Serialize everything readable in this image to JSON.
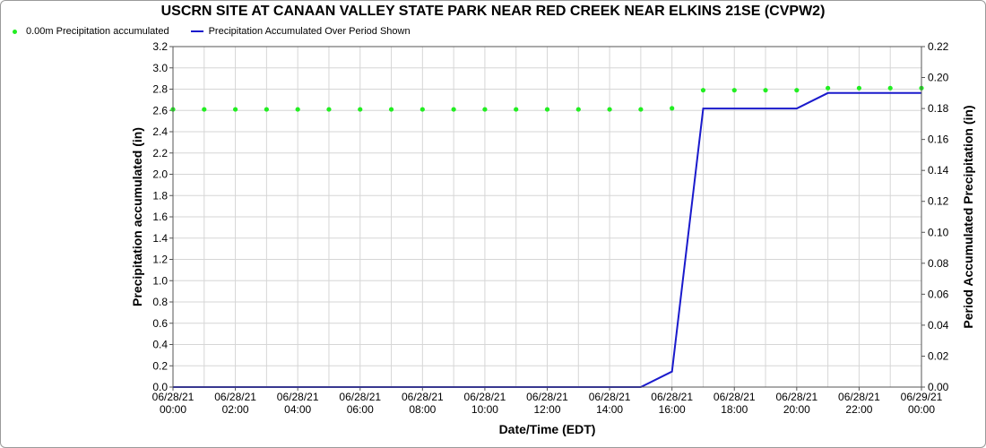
{
  "chart_data": {
    "type": "line",
    "title": "USCRN SITE AT CANAAN VALLEY STATE PARK NEAR RED CREEK NEAR ELKINS 21SE (CVPW2)",
    "xlabel": "Date/Time (EDT)",
    "ylabel": "Precipitation accumulated (in)",
    "y2label": "Period Accumulated Precipitation (in)",
    "xlim": [
      "06/28/21 00:00",
      "06/29/21 00:00"
    ],
    "ylim": [
      0,
      3.2
    ],
    "y2lim": [
      0,
      0.22
    ],
    "grid": true,
    "legend_position": "top-left",
    "x_ticks": [
      {
        "date": "06/28/21",
        "time": "00:00"
      },
      {
        "date": "06/28/21",
        "time": "02:00"
      },
      {
        "date": "06/28/21",
        "time": "04:00"
      },
      {
        "date": "06/28/21",
        "time": "06:00"
      },
      {
        "date": "06/28/21",
        "time": "08:00"
      },
      {
        "date": "06/28/21",
        "time": "10:00"
      },
      {
        "date": "06/28/21",
        "time": "12:00"
      },
      {
        "date": "06/28/21",
        "time": "14:00"
      },
      {
        "date": "06/28/21",
        "time": "16:00"
      },
      {
        "date": "06/28/21",
        "time": "18:00"
      },
      {
        "date": "06/28/21",
        "time": "20:00"
      },
      {
        "date": "06/28/21",
        "time": "22:00"
      },
      {
        "date": "06/29/21",
        "time": "00:00"
      }
    ],
    "y_ticks": [
      "0.0",
      "0.2",
      "0.4",
      "0.6",
      "0.8",
      "1.0",
      "1.2",
      "1.4",
      "1.6",
      "1.8",
      "2.0",
      "2.2",
      "2.4",
      "2.6",
      "2.8",
      "3.0",
      "3.2"
    ],
    "y2_ticks": [
      "0.00",
      "0.02",
      "0.04",
      "0.06",
      "0.08",
      "0.10",
      "0.12",
      "0.14",
      "0.16",
      "0.18",
      "0.20",
      "0.22"
    ],
    "series": [
      {
        "name": "0.00m Precipitation accumulated",
        "kind": "scatter",
        "axis": "left",
        "color": "#22ee22",
        "x": [
          "06/28/21 00:00",
          "06/28/21 01:00",
          "06/28/21 02:00",
          "06/28/21 03:00",
          "06/28/21 04:00",
          "06/28/21 05:00",
          "06/28/21 06:00",
          "06/28/21 07:00",
          "06/28/21 08:00",
          "06/28/21 09:00",
          "06/28/21 10:00",
          "06/28/21 11:00",
          "06/28/21 12:00",
          "06/28/21 13:00",
          "06/28/21 14:00",
          "06/28/21 15:00",
          "06/28/21 16:00",
          "06/28/21 17:00",
          "06/28/21 18:00",
          "06/28/21 19:00",
          "06/28/21 20:00",
          "06/28/21 21:00",
          "06/28/21 22:00",
          "06/28/21 23:00",
          "06/29/21 00:00"
        ],
        "y": [
          2.61,
          2.61,
          2.61,
          2.61,
          2.61,
          2.61,
          2.61,
          2.61,
          2.61,
          2.61,
          2.61,
          2.61,
          2.61,
          2.61,
          2.61,
          2.61,
          2.62,
          2.79,
          2.79,
          2.79,
          2.79,
          2.81,
          2.81,
          2.81,
          2.81
        ]
      },
      {
        "name": "Precipitation Accumulated Over Period Shown",
        "kind": "line",
        "axis": "right",
        "color": "#1a1acc",
        "x": [
          "06/28/21 00:00",
          "06/28/21 15:00",
          "06/28/21 16:00",
          "06/28/21 17:00",
          "06/28/21 20:00",
          "06/28/21 21:00",
          "06/29/21 00:00"
        ],
        "y": [
          0.0,
          0.0,
          0.01,
          0.18,
          0.18,
          0.19,
          0.19
        ]
      }
    ]
  }
}
